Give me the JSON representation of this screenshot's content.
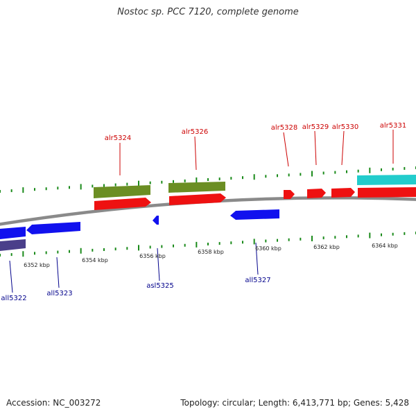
{
  "title": "Nostoc sp. PCC 7120, complete genome",
  "footer": {
    "accession": "Accession: NC_003272",
    "summary": "Topology: circular; Length: 6,413,771 bp; Genes: 5,428"
  },
  "colors": {
    "backbone": "#8a8a8a",
    "tick": "#1a8a1a",
    "forward_label": "#cc0000",
    "reverse_label": "#00008b",
    "forward_gene": "#ee1111",
    "reverse_gene": "#1111ee",
    "olive_feature": "#6b8e23",
    "cyan_feature": "#22cccc",
    "purple_feature": "#4a3f8a"
  },
  "scale": {
    "unit": "kbp",
    "tick_labels": [
      "6352 kbp",
      "6354 kbp",
      "6356 kbp",
      "6358 kbp",
      "6360 kbp",
      "6362 kbp",
      "6364 kbp"
    ]
  },
  "genes": {
    "forward": [
      {
        "name": "alr5324"
      },
      {
        "name": "alr5326"
      },
      {
        "name": "alr5328"
      },
      {
        "name": "alr5329"
      },
      {
        "name": "alr5330"
      },
      {
        "name": "alr5331"
      }
    ],
    "reverse": [
      {
        "name": "all5322"
      },
      {
        "name": "all5323"
      },
      {
        "name": "asl5325"
      },
      {
        "name": "all5327"
      }
    ]
  }
}
